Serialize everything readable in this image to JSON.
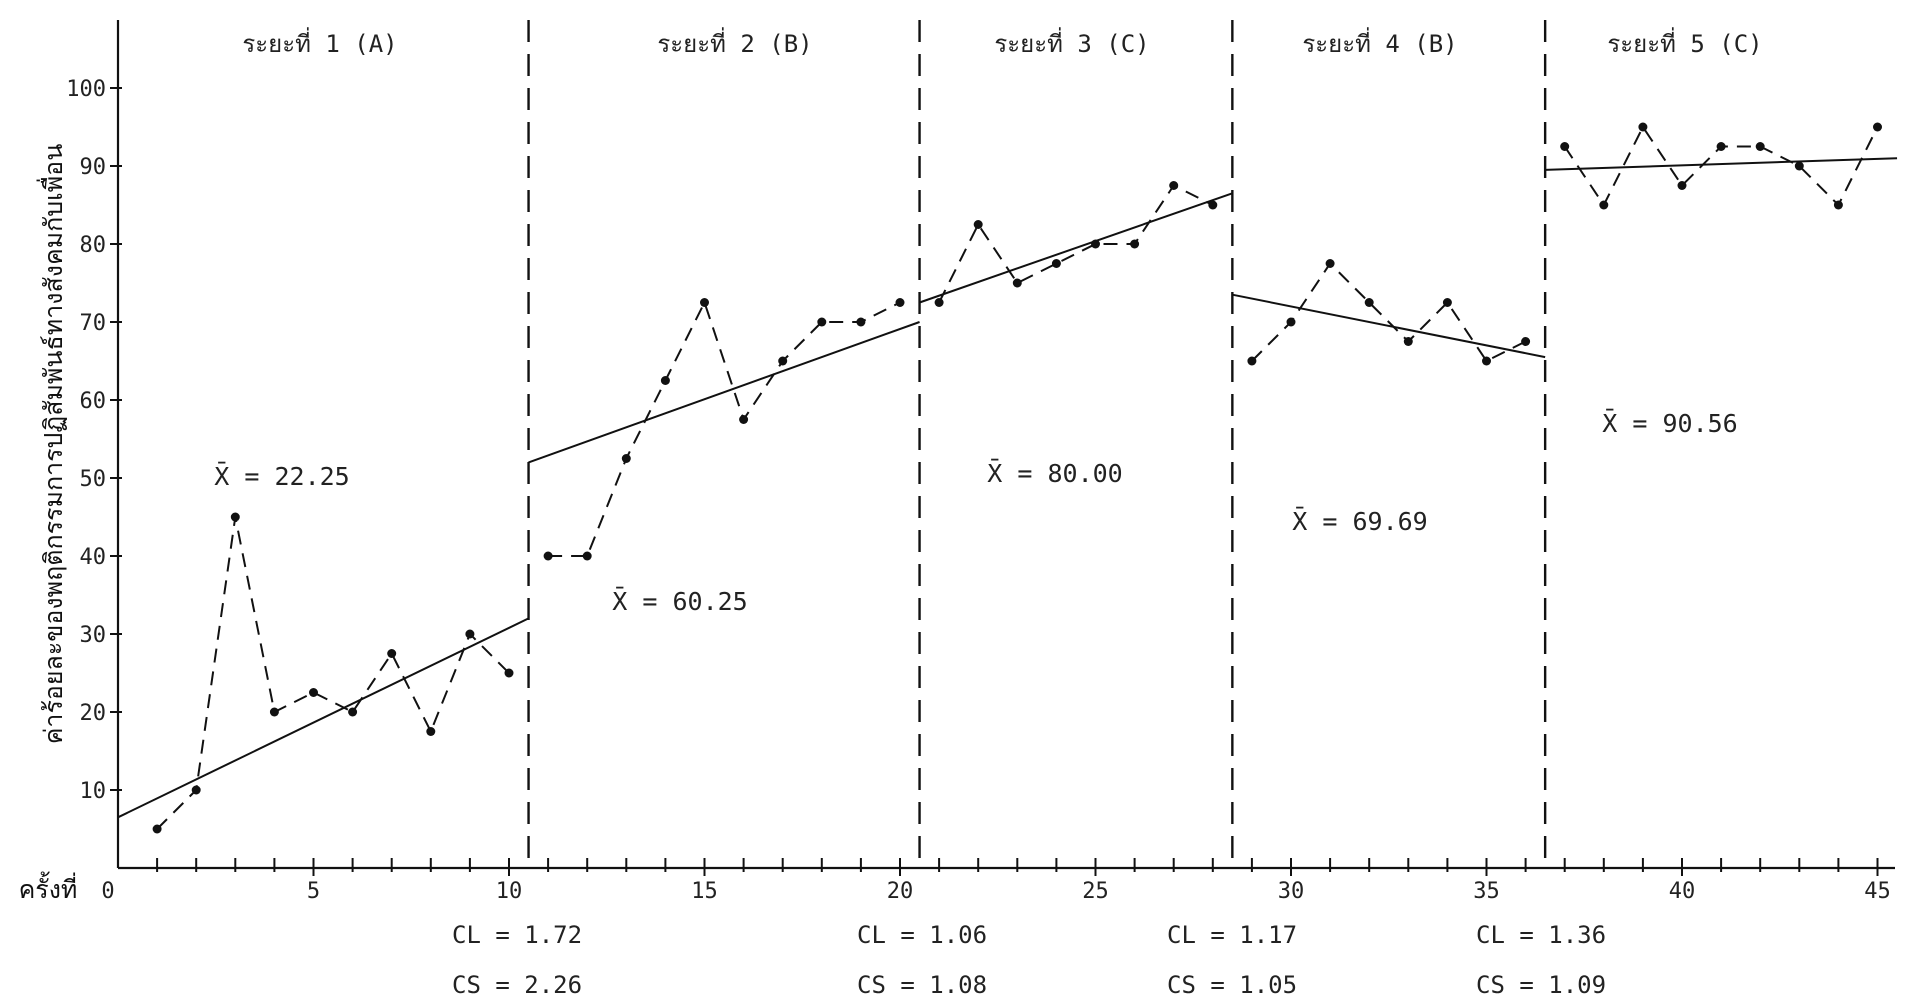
{
  "chart_data": {
    "type": "line",
    "ylabel": "ค่าร้อยละของพฤติกรรมการปฏิสัมพันธ์ทางสังคมกับเพื่อน",
    "xlabel": "ครั้งที่",
    "xlim": [
      0,
      45
    ],
    "ylim": [
      0,
      100
    ],
    "x_ticks": [
      0,
      5,
      10,
      15,
      20,
      25,
      30,
      35,
      40,
      45
    ],
    "y_ticks": [
      10,
      20,
      30,
      40,
      50,
      60,
      70,
      80,
      90,
      100
    ],
    "grid": false,
    "phases": [
      {
        "label": "ระยะที่ 1 (A)",
        "mean_label": "X̄ = 22.25",
        "points": [
          [
            1,
            5
          ],
          [
            2,
            10
          ],
          [
            3,
            45
          ],
          [
            4,
            20
          ],
          [
            5,
            22.5
          ],
          [
            6,
            20
          ],
          [
            7,
            27.5
          ],
          [
            8,
            17.5
          ],
          [
            9,
            30
          ],
          [
            10,
            25
          ]
        ],
        "trend": [
          [
            0,
            6.5
          ],
          [
            10.5,
            32
          ]
        ]
      },
      {
        "label": "ระยะที่ 2 (B)",
        "mean_label": "X̄ = 60.25",
        "points": [
          [
            11,
            40
          ],
          [
            12,
            40
          ],
          [
            13,
            52.5
          ],
          [
            14,
            62.5
          ],
          [
            15,
            72.5
          ],
          [
            16,
            57.5
          ],
          [
            17,
            65
          ],
          [
            18,
            70
          ],
          [
            19,
            70
          ],
          [
            20,
            72.5
          ]
        ],
        "trend": [
          [
            10.5,
            52
          ],
          [
            20.5,
            70
          ]
        ]
      },
      {
        "label": "ระยะที่ 3 (C)",
        "mean_label": "X̄ = 80.00",
        "points": [
          [
            21,
            72.5
          ],
          [
            22,
            82.5
          ],
          [
            23,
            75
          ],
          [
            24,
            77.5
          ],
          [
            25,
            80
          ],
          [
            26,
            80
          ],
          [
            27,
            87.5
          ],
          [
            28,
            85
          ]
        ],
        "trend": [
          [
            20.5,
            72.5
          ],
          [
            28.5,
            86.5
          ]
        ]
      },
      {
        "label": "ระยะที่ 4 (B)",
        "mean_label": "X̄ = 69.69",
        "points": [
          [
            29,
            65
          ],
          [
            30,
            70
          ],
          [
            31,
            77.5
          ],
          [
            32,
            72.5
          ],
          [
            33,
            67.5
          ],
          [
            34,
            72.5
          ],
          [
            35,
            65
          ],
          [
            36,
            67.5
          ]
        ],
        "trend": [
          [
            28.5,
            73.5
          ],
          [
            36.5,
            65.5
          ]
        ]
      },
      {
        "label": "ระยะที่ 5 (C)",
        "mean_label": "X̄ = 90.56",
        "points": [
          [
            37,
            92.5
          ],
          [
            38,
            85
          ],
          [
            39,
            95
          ],
          [
            40,
            87.5
          ],
          [
            41,
            92.5
          ],
          [
            42,
            92.5
          ],
          [
            43,
            90
          ],
          [
            44,
            85
          ],
          [
            45,
            95
          ]
        ],
        "trend": [
          [
            36.5,
            89.5
          ],
          [
            45.5,
            91
          ]
        ]
      }
    ],
    "phase_boundaries": [
      10.5,
      20.5,
      28.5,
      36.5
    ],
    "stats": [
      {
        "cl": "CL = 1.72",
        "cs": "CS = 2.26"
      },
      {
        "cl": "CL = 1.06",
        "cs": "CS = 1.08"
      },
      {
        "cl": "CL = 1.17",
        "cs": "CS = 1.05"
      },
      {
        "cl": "CL = 1.36",
        "cs": "CS = 1.09"
      }
    ]
  }
}
